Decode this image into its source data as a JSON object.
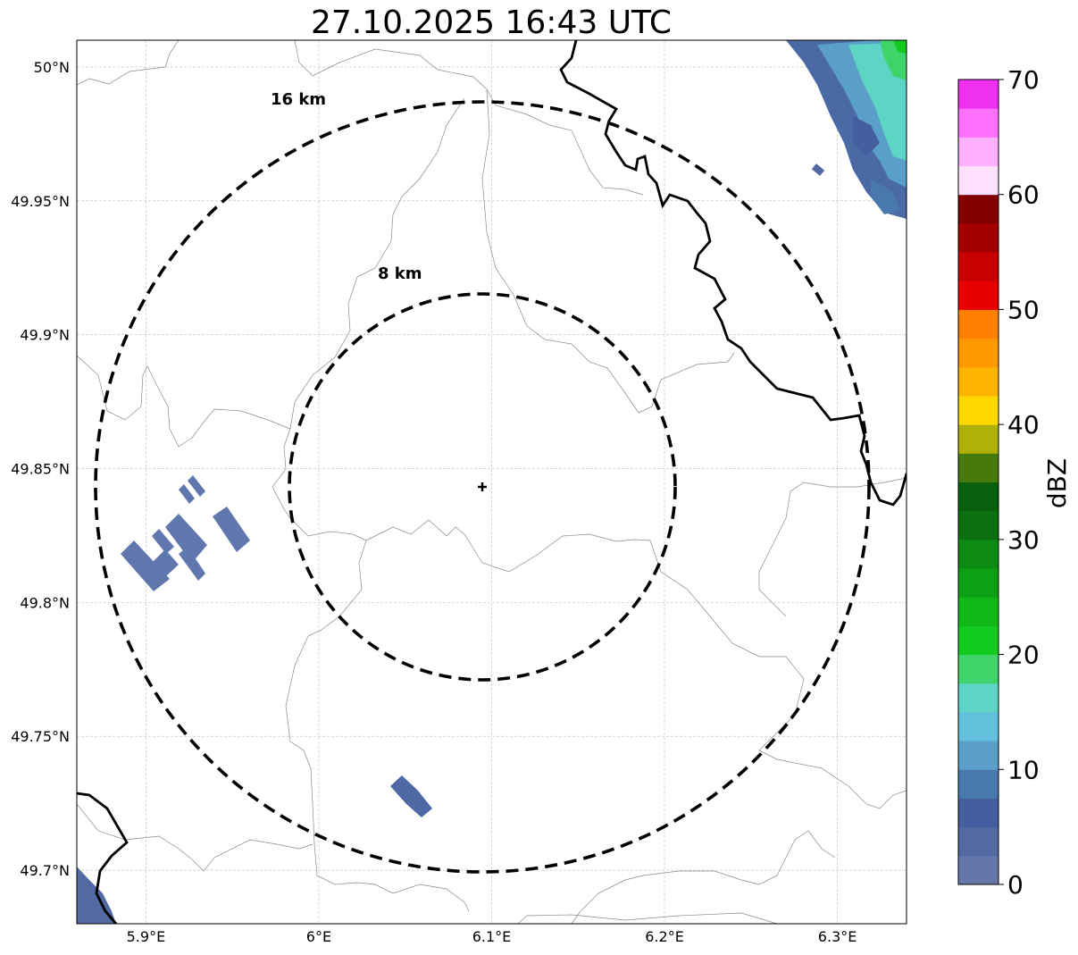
{
  "title": "27.10.2025 16:43 UTC",
  "map": {
    "lon_range": [
      5.86,
      6.34
    ],
    "lat_range": [
      49.68,
      50.01
    ],
    "x_ticks": [
      {
        "value": 5.9,
        "label": "5.9°E"
      },
      {
        "value": 6.0,
        "label": "6°E"
      },
      {
        "value": 6.1,
        "label": "6.1°E"
      },
      {
        "value": 6.2,
        "label": "6.2°E"
      },
      {
        "value": 6.3,
        "label": "6.3°E"
      }
    ],
    "y_ticks": [
      {
        "value": 50.0,
        "label": "50°N"
      },
      {
        "value": 49.95,
        "label": "49.95°N"
      },
      {
        "value": 49.9,
        "label": "49.9°N"
      },
      {
        "value": 49.85,
        "label": "49.85°N"
      },
      {
        "value": 49.8,
        "label": "49.8°N"
      },
      {
        "value": 49.75,
        "label": "49.75°N"
      },
      {
        "value": 49.7,
        "label": "49.7°N"
      }
    ],
    "grid": true,
    "center": {
      "lon": 6.095,
      "lat": 49.843,
      "marker": "plus"
    },
    "rings": [
      {
        "radius_km": 16,
        "label": "16 km"
      },
      {
        "radius_km": 8,
        "label": "8 km"
      }
    ]
  },
  "colorbar": {
    "label": "dBZ",
    "min": 0,
    "max": 70,
    "tick_labels": [
      "0",
      "10",
      "20",
      "30",
      "40",
      "50",
      "60",
      "70"
    ],
    "colors": [
      "#6477a8",
      "#5369a2",
      "#445e9f",
      "#4878ad",
      "#5a9fc7",
      "#62c0dd",
      "#5ed4c4",
      "#3fd46a",
      "#13cb20",
      "#10b815",
      "#0ea014",
      "#0c8a12",
      "#0a7010",
      "#07600b",
      "#477a0c",
      "#b0b00a",
      "#ffd800",
      "#ffb400",
      "#ff9900",
      "#ff7f00",
      "#e60000",
      "#c80000",
      "#a50000",
      "#820000",
      "#ffe0ff",
      "#ffb0ff",
      "#ff70ff",
      "#f030f0"
    ]
  },
  "echoes": [
    {
      "region": "northeast",
      "dbz": 10
    },
    {
      "region": "west",
      "dbz": 3
    },
    {
      "region": "south",
      "dbz": 5
    },
    {
      "region": "southwest-corner",
      "dbz": 4
    }
  ]
}
